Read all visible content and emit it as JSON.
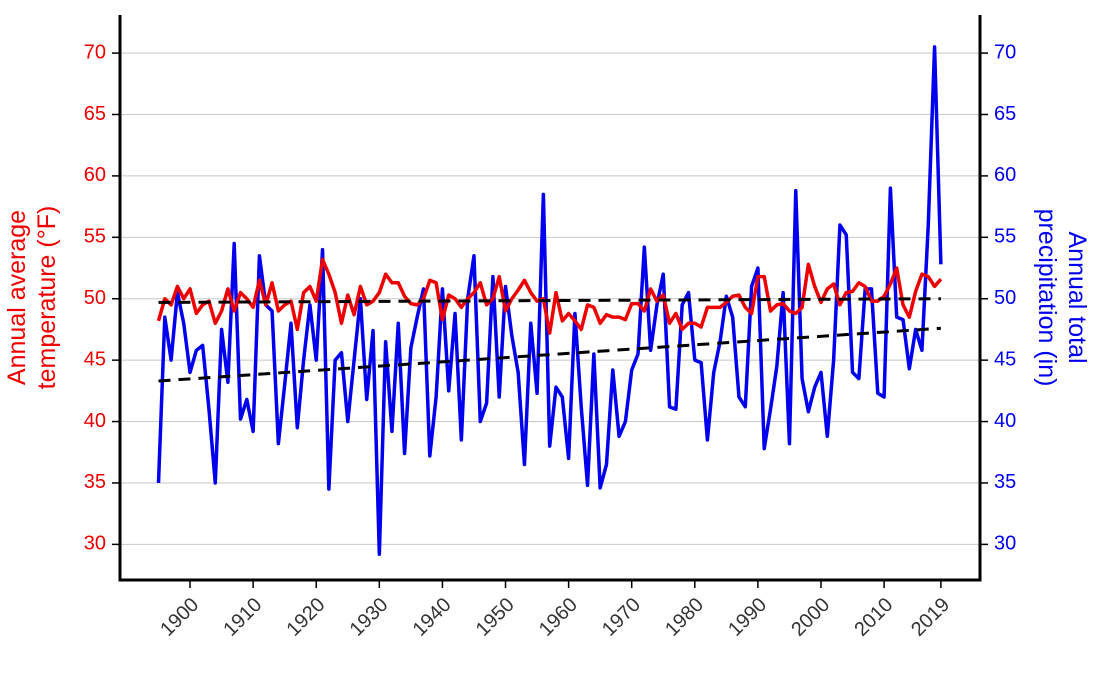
{
  "chart_data": {
    "type": "line",
    "x": [
      1895,
      1896,
      1897,
      1898,
      1899,
      1900,
      1901,
      1902,
      1903,
      1904,
      1905,
      1906,
      1907,
      1908,
      1909,
      1910,
      1911,
      1912,
      1913,
      1914,
      1915,
      1916,
      1917,
      1918,
      1919,
      1920,
      1921,
      1922,
      1923,
      1924,
      1925,
      1926,
      1927,
      1928,
      1929,
      1930,
      1931,
      1932,
      1933,
      1934,
      1935,
      1936,
      1937,
      1938,
      1939,
      1940,
      1941,
      1942,
      1943,
      1944,
      1945,
      1946,
      1947,
      1948,
      1949,
      1950,
      1951,
      1952,
      1953,
      1954,
      1955,
      1956,
      1957,
      1958,
      1959,
      1960,
      1961,
      1962,
      1963,
      1964,
      1965,
      1966,
      1967,
      1968,
      1969,
      1970,
      1971,
      1972,
      1973,
      1974,
      1975,
      1976,
      1977,
      1978,
      1979,
      1980,
      1981,
      1982,
      1983,
      1984,
      1985,
      1986,
      1987,
      1988,
      1989,
      1990,
      1991,
      1992,
      1993,
      1994,
      1995,
      1996,
      1997,
      1998,
      1999,
      2000,
      2001,
      2002,
      2003,
      2004,
      2005,
      2006,
      2007,
      2008,
      2009,
      2010,
      2011,
      2012,
      2013,
      2014,
      2015,
      2016,
      2017,
      2018,
      2019
    ],
    "series": [
      {
        "color": "#0000ee",
        "axis": "y2",
        "values": [
          35.0,
          48.5,
          45.0,
          50.5,
          48.0,
          44.0,
          45.8,
          46.2,
          41.0,
          35.0,
          47.5,
          43.2,
          54.5,
          40.2,
          41.8,
          39.2,
          53.5,
          49.5,
          49.0,
          38.2,
          43.0,
          48.0,
          39.5,
          45.0,
          49.5,
          45.0,
          54.0,
          34.5,
          45.0,
          45.6,
          40.0,
          45.0,
          50.0,
          41.8,
          47.4,
          29.2,
          46.5,
          39.2,
          48.0,
          37.4,
          46.0,
          48.5,
          50.8,
          37.2,
          42.0,
          50.8,
          42.5,
          48.8,
          38.5,
          50.0,
          53.5,
          40.0,
          41.5,
          51.8,
          42.0,
          51.0,
          47.0,
          44.0,
          36.5,
          48.0,
          42.3,
          58.5,
          38.0,
          42.8,
          42.0,
          37.0,
          48.8,
          41.2,
          34.8,
          45.5,
          34.6,
          36.5,
          44.2,
          38.8,
          40.0,
          44.2,
          45.5,
          54.2,
          45.8,
          49.5,
          52.0,
          41.2,
          41.0,
          49.5,
          50.5,
          45.0,
          44.8,
          38.5,
          44.0,
          46.5,
          50.2,
          48.5,
          42.0,
          41.2,
          51.0,
          52.5,
          37.8,
          41.0,
          44.5,
          50.5,
          38.2,
          58.8,
          43.5,
          40.8,
          42.8,
          44.0,
          38.8,
          45.0,
          56.0,
          55.2,
          44.0,
          43.5,
          50.8,
          50.8,
          42.3,
          42.0,
          59.0,
          48.5,
          48.3,
          44.3,
          47.5,
          45.8,
          56.0,
          70.5,
          52.8
        ]
      },
      {
        "color": "#ee0000",
        "axis": "y",
        "values": [
          48.2,
          50.0,
          49.5,
          51.0,
          50.0,
          50.8,
          48.8,
          49.5,
          49.8,
          48.0,
          49.0,
          50.8,
          49.0,
          50.5,
          50.0,
          49.3,
          51.5,
          49.5,
          51.3,
          49.0,
          49.5,
          49.8,
          47.5,
          50.5,
          51.0,
          49.8,
          53.2,
          52.0,
          50.5,
          48.0,
          50.3,
          48.7,
          51.0,
          49.5,
          49.8,
          50.5,
          52.0,
          51.3,
          51.3,
          50.2,
          49.6,
          49.5,
          50.0,
          51.5,
          51.3,
          48.3,
          50.3,
          50.0,
          49.3,
          50.0,
          50.5,
          51.3,
          49.5,
          50.0,
          51.8,
          49.0,
          50.0,
          50.7,
          51.5,
          50.5,
          49.8,
          50.0,
          47.2,
          50.5,
          48.2,
          48.8,
          48.2,
          47.5,
          49.5,
          49.3,
          48.0,
          48.7,
          48.5,
          48.5,
          48.3,
          49.6,
          49.6,
          49.0,
          50.8,
          49.8,
          50.3,
          48.0,
          48.8,
          47.5,
          48.0,
          48.0,
          47.7,
          49.3,
          49.3,
          49.3,
          49.7,
          50.2,
          50.3,
          49.3,
          48.8,
          51.8,
          51.8,
          49.0,
          49.5,
          49.6,
          49.0,
          48.8,
          49.3,
          52.8,
          51.0,
          49.7,
          50.8,
          51.2,
          49.5,
          50.5,
          50.6,
          51.3,
          51.0,
          49.8,
          49.8,
          50.2,
          51.2,
          52.5,
          49.5,
          48.5,
          50.6,
          52.0,
          51.8,
          51.0,
          51.6
        ]
      }
    ],
    "trend_lines": [
      {
        "color": "#000000",
        "axis": "y",
        "x": [
          1895,
          2019
        ],
        "values": [
          49.7,
          50.0
        ]
      },
      {
        "color": "#000000",
        "axis": "y2",
        "x": [
          1895,
          2019
        ],
        "values": [
          43.3,
          47.6
        ]
      }
    ],
    "ylabel": [
      "Annual average",
      "temperature (°F)"
    ],
    "ylabel_color": "#ee0000",
    "y2label": [
      "Annual total",
      "precipitation (in)"
    ],
    "y2label_color": "#0000ee",
    "xlim": [
      1888.9,
      2025.2
    ],
    "xticks": [
      1900,
      1910,
      1920,
      1930,
      1940,
      1950,
      1960,
      1970,
      1980,
      1990,
      2000,
      2010,
      2019
    ],
    "ylim": [
      27.1,
      73.1
    ],
    "yticks": [
      30,
      35,
      40,
      45,
      50,
      55,
      60,
      65,
      70
    ],
    "y2lim": [
      27.1,
      73.1
    ],
    "y2ticks": [
      30,
      35,
      40,
      45,
      50,
      55,
      60,
      65,
      70
    ],
    "grid": true
  }
}
